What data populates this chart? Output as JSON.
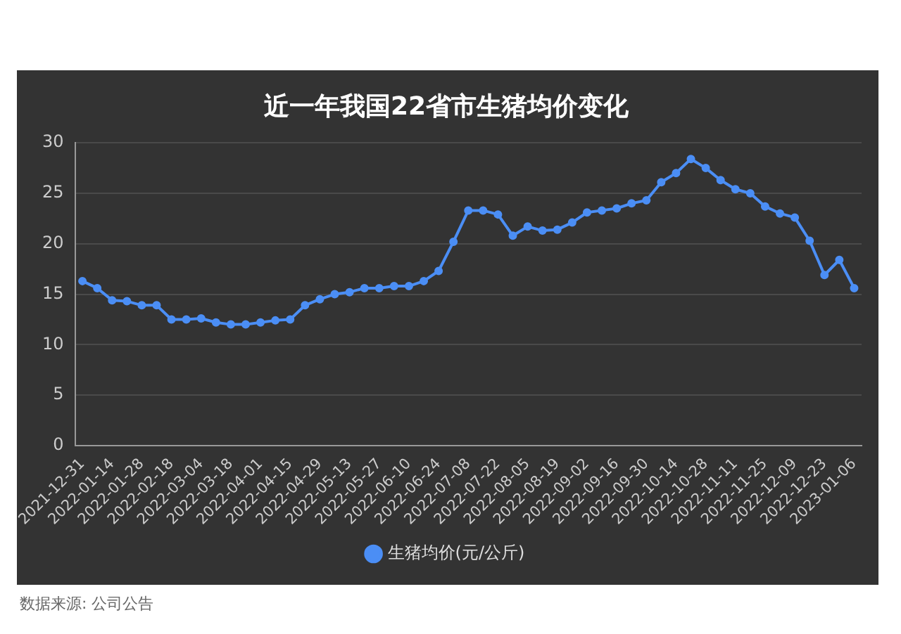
{
  "chart_data": {
    "type": "line",
    "title": "近一年我国22省市生猪均价变化",
    "categories": [
      "2021-12-31",
      null,
      "2022-01-14",
      null,
      "2022-01-28",
      null,
      "2022-02-18",
      null,
      "2022-03-04",
      null,
      "2022-03-18",
      null,
      "2022-04-01",
      null,
      "2022-04-15",
      null,
      "2022-04-29",
      null,
      "2022-05-13",
      null,
      "2022-05-27",
      null,
      "2022-06-10",
      null,
      "2022-06-24",
      null,
      "2022-07-08",
      null,
      "2022-07-22",
      null,
      "2022-08-05",
      null,
      "2022-08-19",
      null,
      "2022-09-02",
      null,
      "2022-09-16",
      null,
      "2022-09-30",
      null,
      "2022-10-14",
      null,
      "2022-10-28",
      null,
      "2022-11-11",
      null,
      "2022-11-25",
      null,
      "2022-12-09",
      null,
      "2022-12-23",
      null,
      "2023-01-06"
    ],
    "series": [
      {
        "name": "生猪均价(元/公斤)",
        "color": "#4b8ef5",
        "values": [
          16.3,
          15.6,
          14.4,
          14.3,
          13.9,
          13.9,
          12.5,
          12.5,
          12.6,
          12.2,
          12.0,
          12.0,
          12.2,
          12.4,
          12.5,
          13.9,
          14.5,
          15.0,
          15.2,
          15.6,
          15.6,
          15.8,
          15.8,
          16.3,
          17.3,
          20.2,
          23.3,
          23.3,
          22.9,
          20.8,
          21.7,
          21.3,
          21.4,
          22.1,
          23.1,
          23.3,
          23.5,
          24.0,
          24.3,
          26.1,
          27.0,
          28.4,
          27.5,
          26.3,
          25.4,
          25.0,
          23.7,
          23.0,
          22.6,
          20.3,
          16.9,
          18.4,
          15.6
        ]
      }
    ],
    "ylim": [
      0,
      30
    ],
    "yticks": [
      0,
      5,
      10,
      15,
      20,
      25,
      30
    ],
    "grid": "y",
    "legend": "bottom",
    "marker": "circle",
    "annotations": [
      "数据来源: 公司公告"
    ]
  }
}
